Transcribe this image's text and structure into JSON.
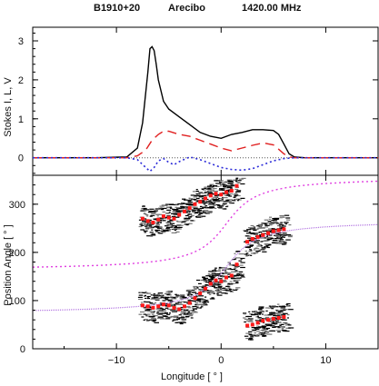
{
  "header": {
    "source": "B1910+20",
    "telescope": "Arecibo",
    "frequency": "1420.00 MHz"
  },
  "colors": {
    "stokes_i": "#000000",
    "stokes_l": "#e02020",
    "stokes_v": "#2a2ad8",
    "pa_points": "#ff1a1a",
    "pa_model": "#b070e0",
    "pa_model_ortho": "#e040e0",
    "pa_hist": "#000000"
  },
  "chart_data": [
    {
      "type": "line",
      "panel": "profile",
      "title": "",
      "xlabel": "",
      "ylabel": "Stokes I, L, V",
      "xlim": [
        -18,
        15
      ],
      "ylim": [
        -0.45,
        3.35
      ],
      "yticks": [
        0,
        1,
        2,
        3
      ],
      "series": [
        {
          "key": "I",
          "style": "solid",
          "x": [
            -18,
            -12,
            -9,
            -8,
            -7.5,
            -7,
            -6.8,
            -6.6,
            -6.4,
            -6.2,
            -6.0,
            -5.5,
            -5.0,
            -4.5,
            -4.0,
            -3.0,
            -2.0,
            -1.0,
            0.0,
            1.0,
            2.0,
            3.0,
            4.0,
            5.0,
            5.5,
            6.0,
            6.5,
            7.0,
            8.0,
            15
          ],
          "y": [
            0,
            0,
            0.02,
            0.25,
            0.9,
            2.2,
            2.8,
            2.85,
            2.75,
            2.4,
            2.0,
            1.45,
            1.25,
            1.15,
            1.05,
            0.85,
            0.65,
            0.55,
            0.5,
            0.6,
            0.65,
            0.72,
            0.72,
            0.7,
            0.6,
            0.35,
            0.1,
            0.02,
            0,
            0
          ]
        },
        {
          "key": "L",
          "style": "dashed",
          "x": [
            -18,
            -9,
            -8,
            -7.2,
            -6.6,
            -6.0,
            -5.5,
            -5.0,
            -4.0,
            -3.0,
            -2.0,
            -1.0,
            0.0,
            1.0,
            2.0,
            3.0,
            4.0,
            5.0,
            5.5,
            6.0,
            6.5,
            7.0,
            15
          ],
          "y": [
            0,
            0,
            0.05,
            0.2,
            0.45,
            0.6,
            0.68,
            0.68,
            0.6,
            0.55,
            0.45,
            0.35,
            0.25,
            0.18,
            0.25,
            0.32,
            0.38,
            0.33,
            0.22,
            0.1,
            0.02,
            0,
            0
          ]
        },
        {
          "key": "V",
          "style": "dotted",
          "x": [
            -18,
            -9,
            -8,
            -7.2,
            -6.8,
            -6.4,
            -6.0,
            -5.5,
            -5.0,
            -4.5,
            -4.0,
            -3.0,
            -2.0,
            -1.0,
            0.0,
            1.0,
            2.0,
            3.0,
            4.0,
            5.0,
            6.0,
            7.0,
            15
          ],
          "y": [
            0,
            0,
            -0.05,
            -0.25,
            -0.35,
            -0.25,
            -0.08,
            -0.02,
            -0.12,
            -0.18,
            -0.1,
            0.02,
            -0.05,
            -0.15,
            -0.25,
            -0.3,
            -0.32,
            -0.28,
            -0.18,
            -0.08,
            -0.02,
            0,
            0
          ]
        }
      ]
    },
    {
      "type": "scatter",
      "panel": "position_angle",
      "title": "",
      "xlabel": "Longitude [ ° ]",
      "ylabel": "Position Angle [ ° ]",
      "xlim": [
        -18,
        15
      ],
      "ylim": [
        0,
        360
      ],
      "yticks": [
        0,
        100,
        200,
        300
      ],
      "xticks": [
        -10,
        0,
        10
      ],
      "grid": false,
      "pa_points": {
        "x": [
          -7.5,
          -7.0,
          -6.5,
          -6.0,
          -5.5,
          -5.0,
          -4.5,
          -4.0,
          -3.5,
          -3.0,
          -2.5,
          -2.0,
          -1.5,
          -1.0,
          -0.5,
          0.0,
          0.5,
          1.0,
          1.5,
          -7.5,
          -7.0,
          -6.5,
          -6.0,
          -5.5,
          -5.0,
          -4.5,
          -4.0,
          -3.5,
          -3.0,
          -2.5,
          -2.0,
          -1.5,
          -1.0,
          -0.5,
          0.0,
          0.5,
          1.0,
          1.5,
          2.5,
          3.0,
          3.5,
          4.0,
          4.5,
          5.0,
          5.5,
          6.0,
          2.5,
          3.0,
          3.5,
          4.0,
          4.5,
          5.0,
          5.5,
          6.0
        ],
        "y": [
          270,
          265,
          262,
          268,
          275,
          272,
          270,
          278,
          285,
          292,
          300,
          305,
          312,
          318,
          322,
          320,
          325,
          328,
          338,
          90,
          88,
          85,
          88,
          92,
          90,
          85,
          82,
          88,
          95,
          105,
          115,
          125,
          135,
          142,
          140,
          148,
          152,
          175,
          222,
          228,
          232,
          236,
          240,
          244,
          246,
          248,
          48,
          50,
          54,
          58,
          60,
          62,
          64,
          66
        ]
      },
      "rvm_model": {
        "description": "RVM fit",
        "visible": true
      },
      "rvm_model_ortho": {
        "visible": true
      }
    }
  ]
}
